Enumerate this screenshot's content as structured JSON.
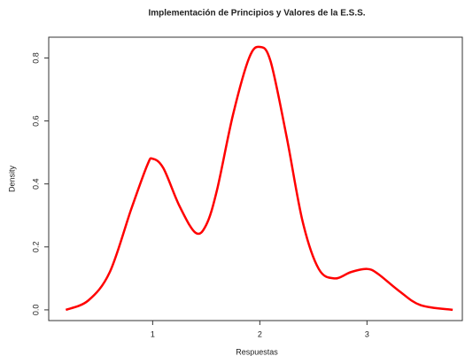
{
  "chart_data": {
    "type": "line",
    "title": "Implementación de Principios y Valores de la E.S.S.",
    "xlabel": "Respuestas",
    "ylabel": "Density",
    "x": [
      0.19,
      0.4,
      0.6,
      0.8,
      0.95,
      1.0,
      1.1,
      1.25,
      1.4,
      1.5,
      1.6,
      1.75,
      1.9,
      2.0,
      2.1,
      2.25,
      2.4,
      2.55,
      2.7,
      2.85,
      3.0,
      3.1,
      3.3,
      3.5,
      3.8
    ],
    "values": [
      0.0,
      0.03,
      0.12,
      0.32,
      0.46,
      0.48,
      0.45,
      0.33,
      0.245,
      0.27,
      0.38,
      0.62,
      0.8,
      0.835,
      0.79,
      0.55,
      0.28,
      0.13,
      0.1,
      0.12,
      0.13,
      0.115,
      0.06,
      0.015,
      0.0
    ],
    "color": "#ff0000",
    "xlim": [
      0.03,
      3.89
    ],
    "ylim": [
      -0.034,
      0.866
    ],
    "xticks": [
      1,
      2,
      3
    ],
    "yticks": [
      {
        "value": 0,
        "label": "0.0"
      },
      0.2,
      0.4,
      0.6,
      0.8
    ]
  }
}
